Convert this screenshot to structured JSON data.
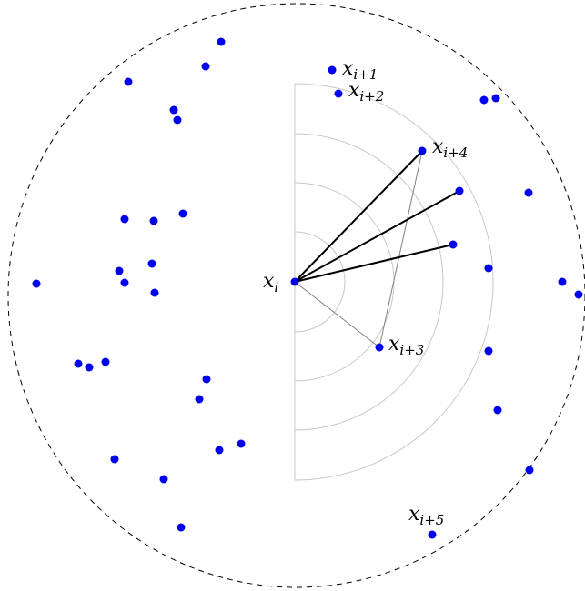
{
  "labels": {
    "xi": {
      "base": "x",
      "sub": "i"
    },
    "xi1": {
      "base": "x",
      "sub": "i+1"
    },
    "xi2": {
      "base": "x",
      "sub": "i+2"
    },
    "xi3": {
      "base": "x",
      "sub": "i+3"
    },
    "xi4": {
      "base": "x",
      "sub": "i+4"
    },
    "xi5": {
      "base": "x",
      "sub": "i+5"
    }
  },
  "colors": {
    "point": "#0000ee",
    "dashed_circle": "#000000",
    "guide_arcs": "#c8c8c8",
    "thin_edges": "#808080",
    "bold_edges": "#000000"
  }
}
